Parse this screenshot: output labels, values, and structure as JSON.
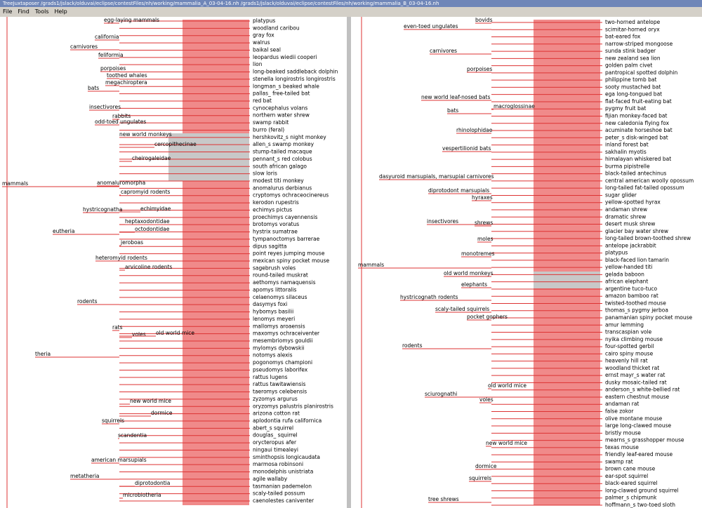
{
  "header": {
    "title": "TreeJuxtaposer /grads1/jslack/olduvai/eclipse/contestFiles/nh/working/mammalia_A_03-04-16.nh /grads1/jslack/olduvai/eclipse/contestFiles/nh/working/mammalia_B_03-04-16.nh"
  },
  "menu": [
    "File",
    "Find",
    "Tools",
    "Help"
  ],
  "left": {
    "leaves": [
      "platypus",
      "woodland caribou",
      "gray fox",
      "walrus",
      "baikal seal",
      "leopardus wiedii cooperi",
      "lion",
      "long-beaked saddleback dolphin",
      "stenella longirostris longirostris",
      "longman_s beaked whale",
      "pallas_ free-tailed bat",
      "red bat",
      "cynocephalus volans",
      "northern water shrew",
      "swamp rabbit",
      "burro (feral)",
      "hershkovitz_s night monkey",
      "allen_s swamp monkey",
      "stump-tailed macaque",
      "pennant_s red colobus",
      "south african galago",
      "slow loris",
      "modest titi monkey",
      "anomalurus derbianus",
      "cryptomys ochraceocinereus",
      "kerodon rupestris",
      "echimys pictus",
      "proechimys cayennensis",
      "brotomys voratus",
      "hystrix sumatrae",
      "tympanoctomys barrerae",
      "dipus sagitta",
      "point reyes jumping mouse",
      "mexican spiny pocket mouse",
      "sagebrush voles",
      "round-tailed muskrat",
      "aethomys namaquensis",
      "apomys littoralis",
      "celaenomys silaceus",
      "dasymys foxi",
      "hybomys basilii",
      "lenomys meyeri",
      "mallomys aroaensis",
      "maxomys ochraceiventer",
      "mesembriomys gouldii",
      "mylomys dybowskii",
      "notomys alexis",
      "pogonomys championi",
      "pseudomys laborifex",
      "rattus lugens",
      "rattus tawitawiensis",
      "taeromys celebensis",
      "zyzomys argurus",
      "oryzomys palustris planirostris",
      "arizona cotton rat",
      "aplodontia rufa californica",
      "abert_s squirrel",
      "douglas_ squirrel",
      "orycteropus afer",
      "ningaui timealeyi",
      "sminthopsis longicaudata",
      "marmosa robinsoni",
      "monodelphis unistriata",
      "agile wallaby",
      "tasmanian pademelon",
      "scaly-tailed possum",
      "caenolestes caniventer"
    ],
    "internal": [
      "mammals",
      "eutheria",
      "theria",
      "metatheria",
      "egg-laying mammals",
      "carnivores",
      "california",
      "feliformia",
      "porpoises",
      "toothed whales",
      "megachiroptera",
      "bats",
      "insectivores",
      "rabbits",
      "odd-toed ungulates",
      "new world monkeys",
      "cercopithecinae",
      "cheirogaleidae",
      "anomaluromorpha",
      "capromyid rodents",
      "hystricognatha",
      "echimyidae",
      "heptaxodontidae",
      "octodontidae",
      "jeroboas",
      "heteromyid rodents",
      "arvicoline rodents",
      "rodents",
      "rats",
      "voles",
      "old world mice",
      "new world mice",
      "dormice",
      "squirrels",
      "scandentia",
      "american marsupials",
      "diprotodontia",
      "microbiotheria"
    ]
  },
  "right": {
    "leaves": [
      "two-horned antelope",
      "scimitar-horned oryx",
      "bat-eared fox",
      "narrow-striped mongoose",
      "sunda stink badger",
      "new zealand sea lion",
      "golden palm civet",
      "pantropical spotted dolphin",
      "philippine tomb bat",
      "sooty mustached bat",
      "ega long-tongued bat",
      "flat-faced fruit-eating bat",
      "pygmy fruit bat",
      "fijian monkey-faced bat",
      "new caledonia flying fox",
      "acuminate horseshoe bat",
      "peter_s disk-winged bat",
      "inland forest bat",
      "sakhalin myotis",
      "himalayan whiskered bat",
      "burma pipistrelle",
      "black-tailed antechinus",
      "central american woolly opossum",
      "long-tailed fat-tailed opossum",
      "sugar glider",
      "yellow-spotted hyrax",
      "andaman shrew",
      "dramatic shrew",
      "desert musk shrew",
      "glacier bay water shrew",
      "long-tailed brown-toothed shrew",
      "antelope jackrabbit",
      "platypus",
      "black-faced lion tamarin",
      "yellow-handed titi",
      "gelada baboon",
      "african elephant",
      "argentine tuco-tuco",
      "amazon bamboo rat",
      "twisted-toothed mouse",
      "thomas_s pygmy jerboa",
      "panamanian spiny pocket mouse",
      "amur lemming",
      "transcaspian vole",
      "nyika climbing mouse",
      "four-spotted gerbil",
      "cairo spiny mouse",
      "heavenly hill rat",
      "woodland thicket rat",
      "ernst mayr_s water rat",
      "dusky mosaic-tailed rat",
      "anderson_s white-bellied rat",
      "eastern chestnut mouse",
      "andaman rat",
      "false zokor",
      "olive montane mouse",
      "large long-clawed mouse",
      "bristly mouse",
      "mearns_s grasshopper mouse",
      "texas mouse",
      "friendly leaf-eared mouse",
      "swamp rat",
      "brown cane mouse",
      "ear-spot squirrel",
      "black-eared squirrel",
      "long-clawed ground squirrel",
      "palmer_s chipmunk",
      "hoffmann_s two-toed sloth"
    ],
    "internal": [
      "mammals",
      "even-toed ungulates",
      "bovids",
      "carnivores",
      "porpoises",
      "new world leaf-nosed bats",
      "bats",
      "macroglossinae",
      "rhinolophidae",
      "vespertilionid bats",
      "dasyuroid marsupials, marsupial carnivores",
      "diprotodont marsupials",
      "hyraxes",
      "insectivores",
      "shrews",
      "moles",
      "monotremes",
      "old world monkeys",
      "elephants",
      "hystricognath rodents",
      "scaly-tailed squirrels",
      "pocket gophers",
      "rodents",
      "old world mice",
      "sciurognathi",
      "voles",
      "new world mice",
      "dormice",
      "squirrels",
      "tree shrews"
    ]
  }
}
